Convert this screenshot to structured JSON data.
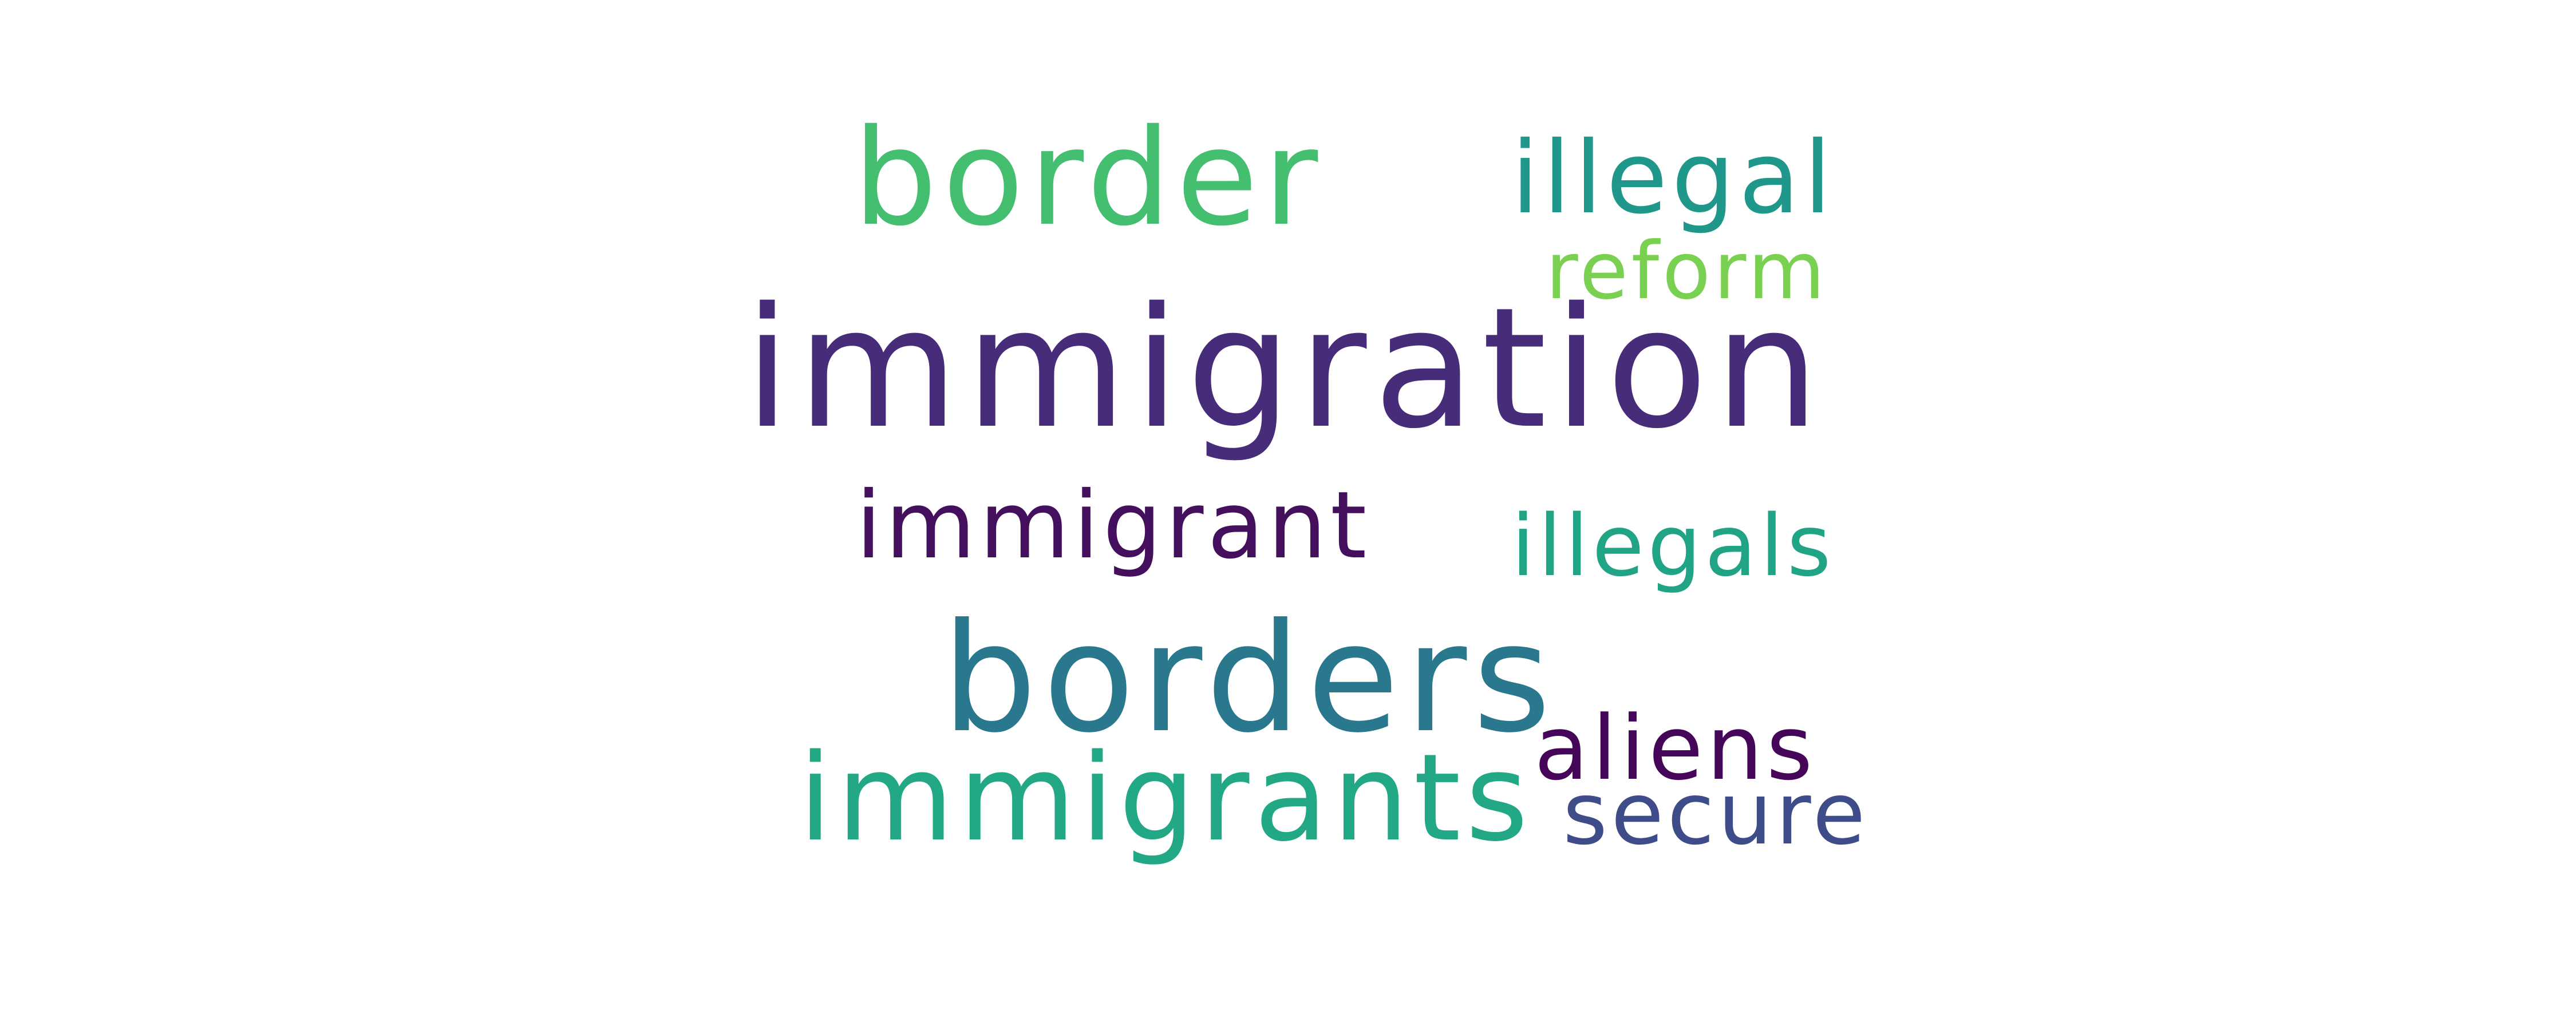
{
  "word_cloud": {
    "words": [
      {
        "text": "immigration",
        "color": "#472c7a"
      },
      {
        "text": "border",
        "color": "#44bf70"
      },
      {
        "text": "borders",
        "color": "#2a788e"
      },
      {
        "text": "immigrants",
        "color": "#22a884"
      },
      {
        "text": "illegal",
        "color": "#1f978b"
      },
      {
        "text": "reform",
        "color": "#7ad151"
      },
      {
        "text": "immigrant",
        "color": "#440f5c"
      },
      {
        "text": "illegals",
        "color": "#21a386"
      },
      {
        "text": "aliens",
        "color": "#450559"
      },
      {
        "text": "secure",
        "color": "#3e4c8a"
      }
    ]
  }
}
